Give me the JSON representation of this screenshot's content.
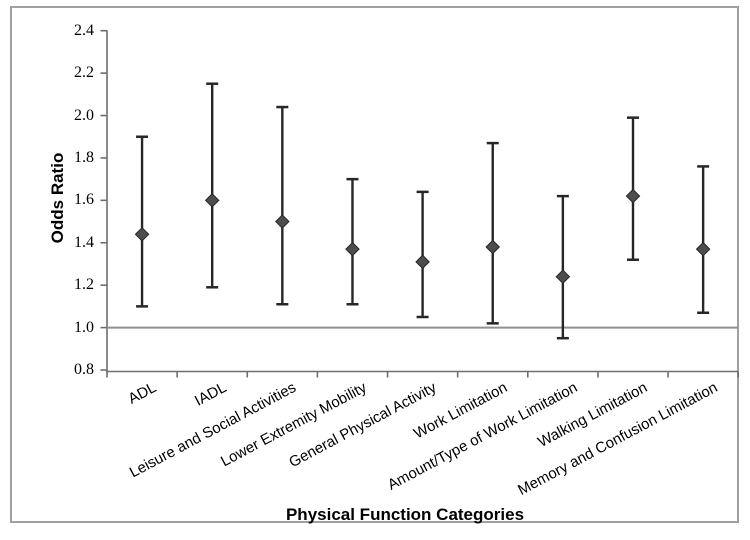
{
  "chart_data": {
    "type": "scatter",
    "subtype": "forest-plot-error-bars",
    "title": "",
    "xlabel": "Physical Function Categories",
    "ylabel": "Odds Ratio",
    "ylim": [
      0.8,
      2.4
    ],
    "yticks": [
      0.8,
      1.0,
      1.2,
      1.4,
      1.6,
      1.8,
      2.0,
      2.2,
      2.4
    ],
    "grid": false,
    "legend": "none",
    "reference_line_y": 1.0,
    "categories": [
      "ADL",
      "IADL",
      "Leisure and Social Activities",
      "Lower Extremity Mobility",
      "General Physical Activity",
      "Work Limitation",
      "Amount/Type of Work Limitation",
      "Walking Limitation",
      "Memory and Confusion Limitation"
    ],
    "series": [
      {
        "name": "Odds Ratio",
        "marker": "diamond",
        "values": [
          1.44,
          1.6,
          1.5,
          1.37,
          1.31,
          1.38,
          1.24,
          1.62,
          1.37
        ],
        "ci_low": [
          1.1,
          1.19,
          1.11,
          1.11,
          1.05,
          1.02,
          0.95,
          1.32,
          1.07
        ],
        "ci_high": [
          1.9,
          2.15,
          2.04,
          1.7,
          1.64,
          1.87,
          1.62,
          1.99,
          1.76
        ]
      }
    ]
  },
  "colors": {
    "background": "#ffffff",
    "border": "#a0a0a0",
    "axis": "#6e6e6e",
    "text": "#000000",
    "error_bar": "#262626",
    "marker_fill": "#4d4d4d",
    "marker_stroke": "#262626",
    "reference_line": "#8f8f8f"
  }
}
